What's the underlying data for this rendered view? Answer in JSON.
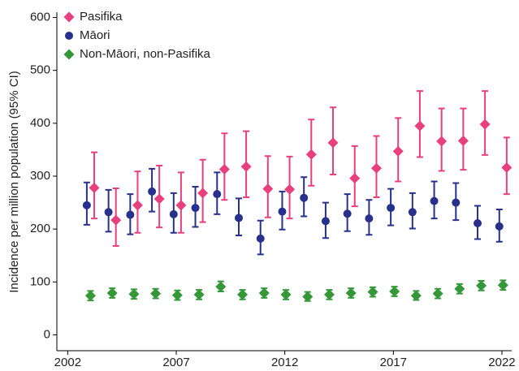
{
  "chart_data": {
    "type": "errorbar",
    "y_label": "Incidence per million population (95% CI)",
    "x": [
      2003,
      2004,
      2005,
      2006,
      2007,
      2008,
      2009,
      2010,
      2011,
      2012,
      2013,
      2014,
      2015,
      2016,
      2017,
      2018,
      2019,
      2020,
      2021,
      2022
    ],
    "xlim": [
      2001.5,
      2022.45
    ],
    "xticks": [
      2002,
      2007,
      2012,
      2017,
      2022
    ],
    "ylim": [
      -30,
      610
    ],
    "yticks": [
      0,
      100,
      200,
      300,
      400,
      500,
      600
    ],
    "legend": "top-left",
    "series": [
      {
        "name": "Pasifika",
        "color": "#e8407f",
        "marker": "diamond",
        "values": [
          278,
          217,
          245,
          257,
          245,
          268,
          313,
          318,
          276,
          275,
          341,
          363,
          296,
          315,
          347,
          395,
          366,
          367,
          398,
          316
        ],
        "ci_low": [
          220,
          168,
          193,
          203,
          193,
          213,
          255,
          260,
          222,
          220,
          282,
          303,
          243,
          260,
          290,
          336,
          310,
          312,
          340,
          266
        ],
        "ci_high": [
          345,
          277,
          309,
          320,
          307,
          331,
          381,
          385,
          338,
          337,
          407,
          430,
          357,
          376,
          410,
          461,
          428,
          428,
          461,
          373
        ]
      },
      {
        "name": "Māori",
        "color": "#27318b",
        "marker": "circle",
        "values": [
          245,
          232,
          227,
          271,
          228,
          240,
          266,
          221,
          182,
          233,
          259,
          215,
          229,
          220,
          240,
          232,
          253,
          250,
          211,
          205
        ],
        "ci_low": [
          208,
          195,
          190,
          233,
          193,
          204,
          228,
          188,
          152,
          199,
          224,
          183,
          196,
          189,
          207,
          201,
          220,
          217,
          181,
          176
        ],
        "ci_high": [
          288,
          274,
          266,
          314,
          268,
          280,
          307,
          258,
          216,
          271,
          298,
          250,
          266,
          255,
          276,
          268,
          290,
          287,
          244,
          237
        ]
      },
      {
        "name": "Non-Māori, non-Pasifika",
        "color": "#35973a",
        "marker": "diamond",
        "values": [
          74,
          79,
          77,
          78,
          75,
          76,
          91,
          76,
          79,
          76,
          72,
          76,
          79,
          81,
          82,
          74,
          78,
          87,
          93,
          94
        ],
        "ci_low": [
          65,
          70,
          68,
          69,
          66,
          67,
          82,
          67,
          70,
          67,
          64,
          67,
          70,
          72,
          73,
          66,
          69,
          78,
          84,
          85
        ],
        "ci_high": [
          83,
          88,
          86,
          87,
          84,
          85,
          101,
          85,
          88,
          85,
          81,
          85,
          88,
          90,
          91,
          83,
          87,
          96,
          102,
          103
        ]
      }
    ]
  }
}
